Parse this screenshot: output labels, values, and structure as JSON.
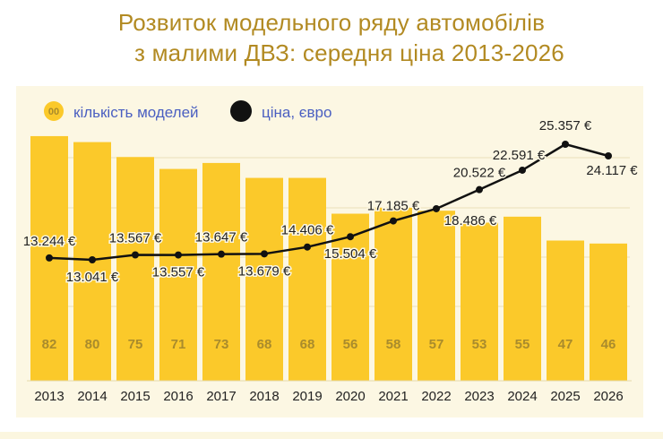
{
  "title_line1": "Розвиток модельного ряду автомобілів",
  "title_line2": "з малими ДВЗ: середня ціна 2013-2026",
  "legend": {
    "bar_marker": "00",
    "bar_label": "кількість моделей",
    "line_label": "ціна, євро"
  },
  "colors": {
    "title": "#b28a22",
    "bar": "#fbc92a",
    "bar_label": "#a98b2c",
    "line": "#111111",
    "legend_text": "#4a5fc1",
    "panel": "#fcf7e3"
  },
  "chart_data": {
    "type": "bar",
    "categories": [
      "2013",
      "2014",
      "2015",
      "2016",
      "2017",
      "2018",
      "2019",
      "2020",
      "2021",
      "2022",
      "2023",
      "2024",
      "2025",
      "2026"
    ],
    "series": [
      {
        "name": "кількість моделей",
        "type": "bar",
        "values": [
          82,
          80,
          75,
          71,
          73,
          68,
          68,
          56,
          58,
          57,
          53,
          55,
          47,
          46
        ],
        "labels": [
          "82",
          "80",
          "75",
          "71",
          "73",
          "68",
          "68",
          "56",
          "58",
          "57",
          "53",
          "55",
          "47",
          "46"
        ]
      },
      {
        "name": "ціна, євро",
        "type": "line",
        "values": [
          13244,
          13041,
          13567,
          13557,
          13647,
          13679,
          14406,
          15504,
          17185,
          18486,
          20522,
          22591,
          25357,
          24117
        ],
        "labels": [
          "13.244 €",
          "13.041 €",
          "13.567 €",
          "13.557 €",
          "13.647 €",
          "13.679 €",
          "14.406 €",
          "15.504 €",
          "17.185 €",
          "18.486 €",
          "20.522 €",
          "22.591 €",
          "25.357 €",
          "24.117 €"
        ]
      }
    ],
    "legend": "top-left",
    "grid": true
  }
}
